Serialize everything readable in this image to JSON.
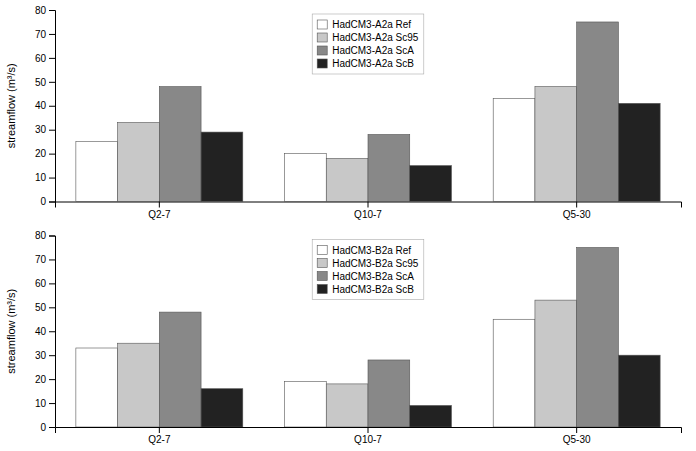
{
  "chart_data": [
    {
      "type": "bar",
      "ylabel": "streamflow (m³/s)",
      "categories": [
        "Q2-7",
        "Q10-7",
        "Q5-30"
      ],
      "series": [
        {
          "name": "HadCM3-A2a Ref",
          "color": "#ffffff",
          "values": [
            25,
            20,
            43
          ]
        },
        {
          "name": "HadCM3-A2a Sc95",
          "color": "#c8c8c8",
          "values": [
            33,
            18,
            48
          ]
        },
        {
          "name": "HadCM3-A2a ScA",
          "color": "#888888",
          "values": [
            48,
            28,
            75
          ]
        },
        {
          "name": "HadCM3-A2a ScB",
          "color": "#222222",
          "values": [
            29,
            15,
            41
          ]
        }
      ],
      "ylim": [
        0,
        80
      ],
      "yticks": [
        0,
        10,
        20,
        30,
        40,
        50,
        60,
        70,
        80
      ],
      "grid": false,
      "legend": "upper center"
    },
    {
      "type": "bar",
      "ylabel": "streamflow (m³/s)",
      "categories": [
        "Q2-7",
        "Q10-7",
        "Q5-30"
      ],
      "series": [
        {
          "name": "HadCM3-B2a Ref",
          "color": "#ffffff",
          "values": [
            33,
            19,
            45
          ]
        },
        {
          "name": "HadCM3-B2a Sc95",
          "color": "#c8c8c8",
          "values": [
            35,
            18,
            53
          ]
        },
        {
          "name": "HadCM3-B2a ScA",
          "color": "#888888",
          "values": [
            48,
            28,
            75
          ]
        },
        {
          "name": "HadCM3-B2a ScB",
          "color": "#222222",
          "values": [
            16,
            9,
            30
          ]
        }
      ],
      "ylim": [
        0,
        80
      ],
      "yticks": [
        0,
        10,
        20,
        30,
        40,
        50,
        60,
        70,
        80
      ],
      "grid": false,
      "legend": "upper center"
    }
  ]
}
